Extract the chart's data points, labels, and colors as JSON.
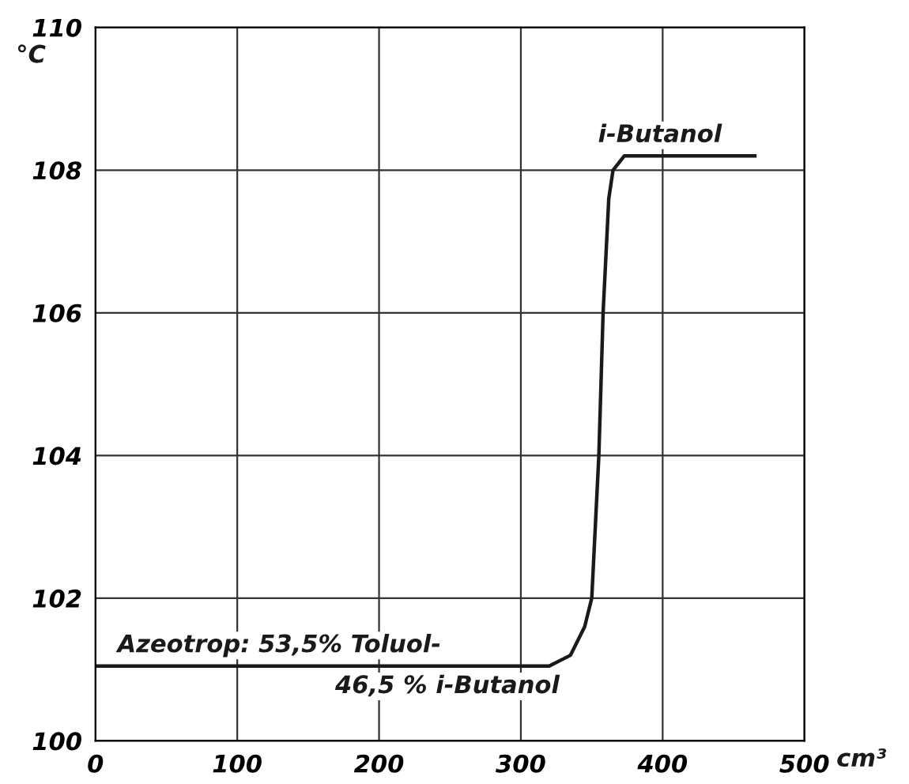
{
  "chart_data": {
    "type": "line",
    "xlabel": "cm³",
    "ylabel": "°C",
    "x": [
      0,
      320,
      335,
      345,
      350,
      355,
      358,
      362,
      365,
      373,
      465
    ],
    "series": [
      {
        "color": "#1a1a1a",
        "values": [
          101.05,
          101.05,
          101.2,
          101.6,
          102,
          104,
          106,
          107.6,
          108,
          108.2,
          108.2
        ]
      }
    ],
    "xlim": [
      0,
      500
    ],
    "ylim": [
      100,
      110
    ],
    "xticks": [
      0,
      100,
      200,
      300,
      400,
      500
    ],
    "yticks": [
      100,
      102,
      104,
      106,
      108,
      110
    ],
    "grid": true,
    "marker": "none",
    "line_style": "solid",
    "annotations": [
      {
        "text": "i-Butanol",
        "x": 373,
        "y": 108.2
      },
      {
        "text": "Azeotrop: 53,5% Toluol-",
        "x": 0,
        "y": 101.05
      },
      {
        "text": "46,5 % i-Butanol",
        "x": 200,
        "y": 101.05
      }
    ]
  }
}
